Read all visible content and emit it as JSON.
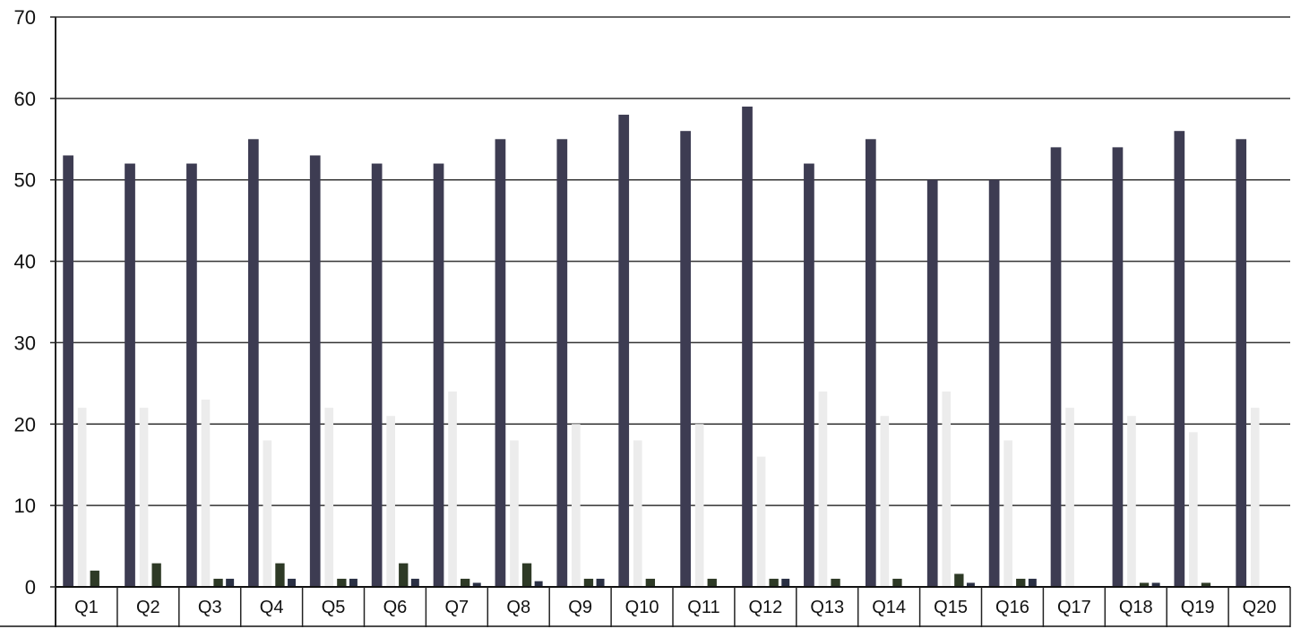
{
  "chart_data": {
    "type": "bar",
    "categories": [
      "Q1",
      "Q2",
      "Q3",
      "Q4",
      "Q5",
      "Q6",
      "Q7",
      "Q8",
      "Q9",
      "Q10",
      "Q11",
      "Q12",
      "Q13",
      "Q14",
      "Q15",
      "Q16",
      "Q17",
      "Q18",
      "Q19",
      "Q20"
    ],
    "series": [
      {
        "values": [
          53,
          52,
          52,
          55,
          53,
          52,
          52,
          55,
          55,
          58,
          56,
          59,
          52,
          55,
          50,
          50,
          54,
          54,
          56,
          55
        ]
      },
      {
        "values": [
          22,
          22,
          23,
          18,
          22,
          21,
          24,
          18,
          20,
          18,
          20,
          16,
          24,
          21,
          24,
          18,
          22,
          21,
          19,
          22
        ]
      },
      {
        "values": [
          2,
          2.9,
          1,
          2.9,
          1,
          2.9,
          1,
          2.9,
          1,
          1,
          1,
          1,
          1,
          1,
          1.6,
          1,
          0,
          0.5,
          0.5,
          0
        ]
      },
      {
        "values": [
          0,
          0,
          1,
          1,
          1,
          1,
          0.5,
          0.7,
          1,
          0,
          0,
          1,
          0,
          0,
          0.5,
          1,
          0,
          0.5,
          0,
          0
        ]
      }
    ],
    "series_colors": [
      "#3d3c52",
      "#ececec",
      "#2e3a26",
      "#2a3044"
    ],
    "y_ticks": [
      0,
      10,
      20,
      30,
      40,
      50,
      60,
      70
    ],
    "ylim": [
      0,
      70
    ],
    "grid": true,
    "title": "",
    "xlabel": "",
    "ylabel": ""
  }
}
